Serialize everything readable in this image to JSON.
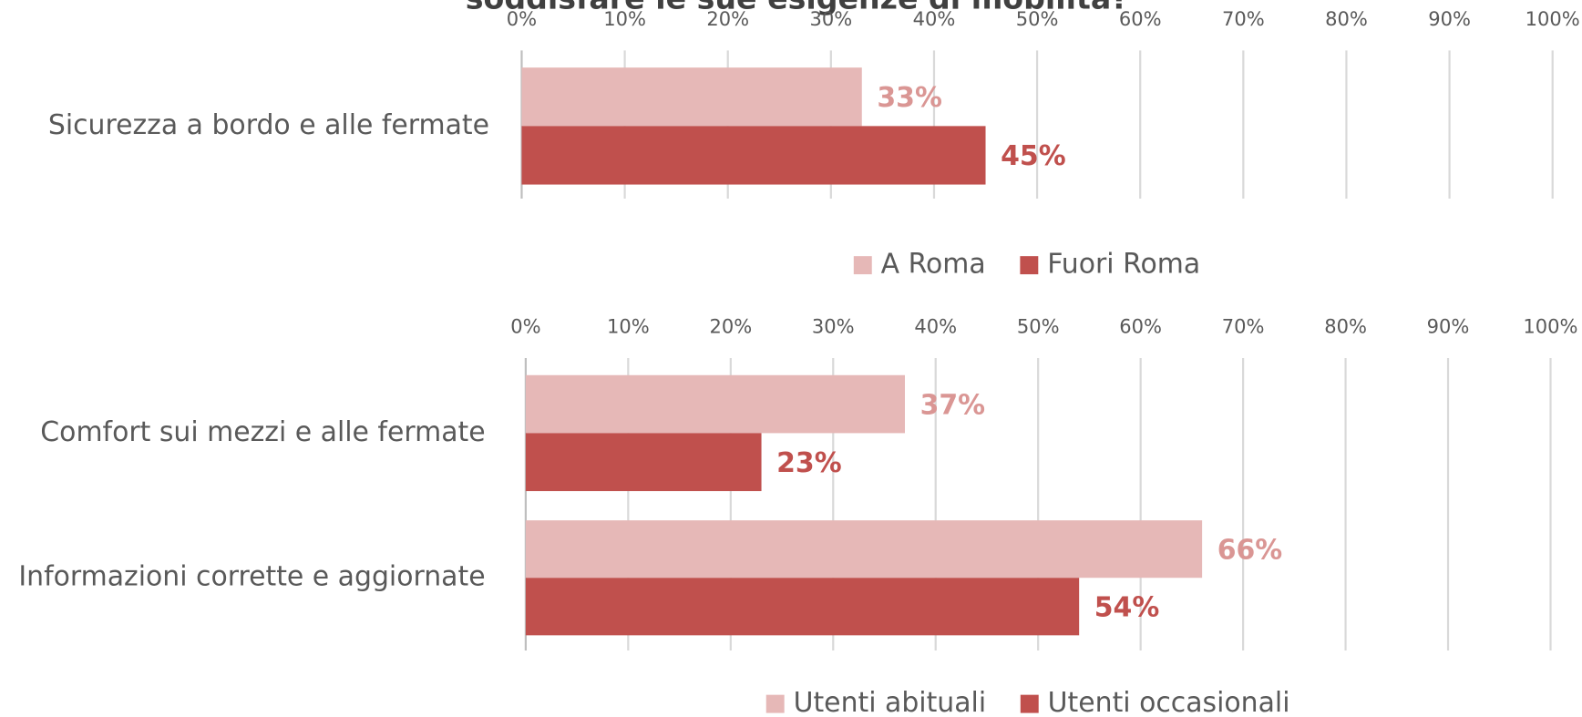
{
  "chart_data": [
    {
      "type": "barh",
      "title": "soddisfare le sue esigenze di mobilità?",
      "categories": [
        "Sicurezza a bordo e alle fermate"
      ],
      "series": [
        {
          "name": "A Roma",
          "color": "#e6b8b7",
          "label_color": "#da9694",
          "values": [
            33
          ],
          "value_labels": [
            "33%"
          ]
        },
        {
          "name": "Fuori Roma",
          "color": "#c0504d",
          "label_color": "#c0504d",
          "values": [
            45
          ],
          "value_labels": [
            "45%"
          ]
        }
      ],
      "xlim": [
        0,
        100
      ],
      "xticks": [
        {
          "value": 0,
          "label": "0%"
        },
        {
          "value": 10,
          "label": "10%"
        },
        {
          "value": 20,
          "label": "20%"
        },
        {
          "value": 30,
          "label": "30%"
        },
        {
          "value": 40,
          "label": "40%"
        },
        {
          "value": 50,
          "label": "50%"
        },
        {
          "value": 60,
          "label": "60%"
        },
        {
          "value": 70,
          "label": "70%"
        },
        {
          "value": 80,
          "label": "80%"
        },
        {
          "value": 90,
          "label": "90%"
        },
        {
          "value": 100,
          "label": "100%"
        }
      ],
      "grid": true,
      "legend": "bottom"
    },
    {
      "type": "barh",
      "categories": [
        "Comfort sui mezzi e alle fermate",
        "Informazioni corrette e aggiornate"
      ],
      "series": [
        {
          "name": "Utenti abituali",
          "color": "#e6b8b7",
          "label_color": "#da9694",
          "values": [
            37,
            66
          ],
          "value_labels": [
            "37%",
            "66%"
          ]
        },
        {
          "name": "Utenti occasionali",
          "color": "#c0504d",
          "label_color": "#c0504d",
          "values": [
            23,
            54
          ],
          "value_labels": [
            "23%",
            "54%"
          ]
        }
      ],
      "xlim": [
        0,
        100
      ],
      "xticks": [
        {
          "value": 0,
          "label": "0%"
        },
        {
          "value": 10,
          "label": "10%"
        },
        {
          "value": 20,
          "label": "20%"
        },
        {
          "value": 30,
          "label": "30%"
        },
        {
          "value": 40,
          "label": "40%"
        },
        {
          "value": 50,
          "label": "50%"
        },
        {
          "value": 60,
          "label": "60%"
        },
        {
          "value": 70,
          "label": "70%"
        },
        {
          "value": 80,
          "label": "80%"
        },
        {
          "value": 90,
          "label": "90%"
        },
        {
          "value": 100,
          "label": "100%"
        }
      ],
      "grid": true,
      "legend": "bottom"
    }
  ]
}
